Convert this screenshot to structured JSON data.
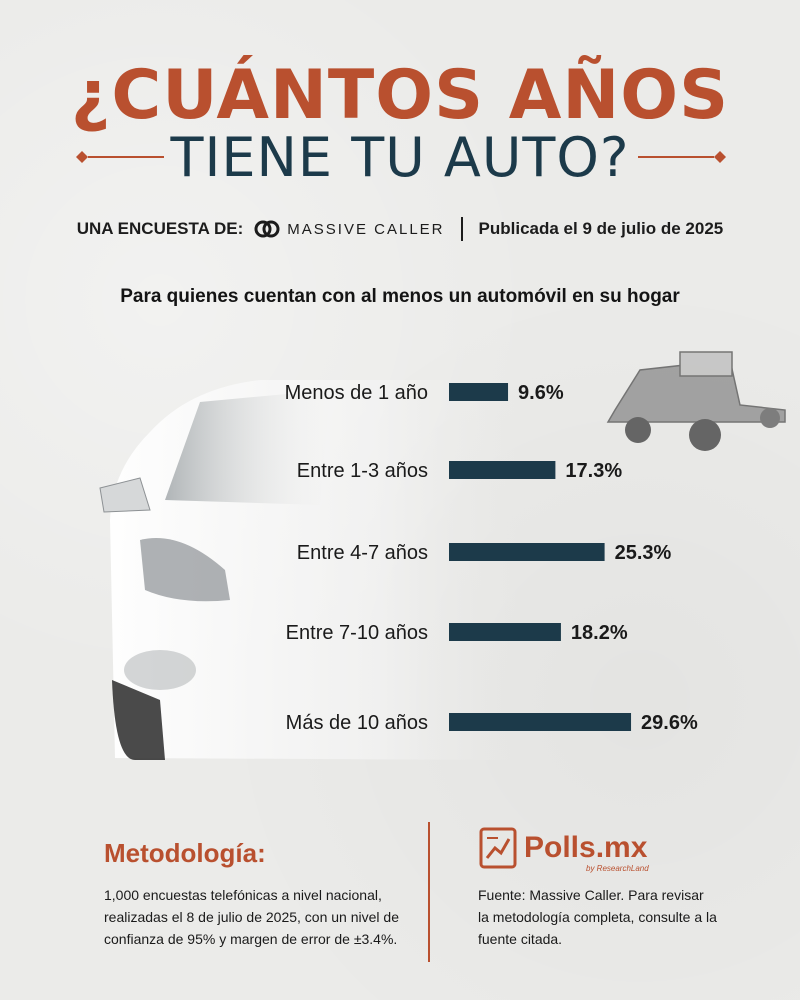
{
  "header": {
    "title_line1": "¿CUÁNTOS AÑOS",
    "title_line2": "TIENE TU AUTO?",
    "survey_prefix": "UNA ENCUESTA DE:",
    "brand_name": "MASSIVE CALLER",
    "published": "Publicada el 9 de julio de 2025"
  },
  "question": "Para quienes cuentan con al menos un automóvil en su hogar",
  "chart_data": {
    "type": "bar",
    "orientation": "horizontal",
    "categories": [
      "Menos de 1 año",
      "Entre 1-3 años",
      "Entre 4-7 años",
      "Entre 7-10 años",
      "Más de 10 años"
    ],
    "values": [
      9.6,
      17.3,
      25.3,
      18.2,
      29.6
    ],
    "value_labels": [
      "9.6%",
      "17.3%",
      "25.3%",
      "18.2%",
      "29.6%"
    ],
    "bar_color": "#1c3a4a",
    "xlim": [
      0,
      30
    ]
  },
  "methodology": {
    "title": "Metodología:",
    "text": "1,000 encuestas telefónicas a nivel nacional, realizadas el 8 de julio de 2025, con un nivel de confianza de 95% y margen de error de ±3.4%."
  },
  "logo": {
    "name": "Polls.mx",
    "sub": "by ResearchLand"
  },
  "source": {
    "text": "Fuente: Massive Caller. Para revisar la metodología completa, consulte a la fuente citada."
  },
  "colors": {
    "accent": "#b9502f",
    "dark_blue": "#1c3a4a",
    "background": "#ebebe9"
  },
  "icons": [
    "ornament-left-icon",
    "ornament-right-icon",
    "massive-caller-logo-icon",
    "car-illustration",
    "truck-illustration",
    "polls-logo-icon"
  ]
}
